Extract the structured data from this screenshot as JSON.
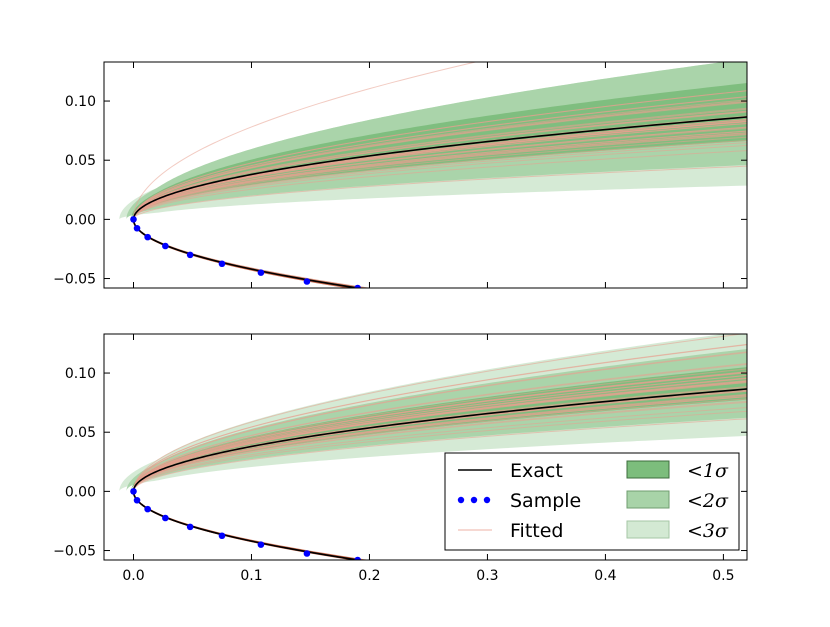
{
  "colors": {
    "exact": "#000000",
    "sample": "#0000ff",
    "fitted": "#e8a090",
    "fitted_dark": "#c0502e",
    "sigma1": "#7cbd7c",
    "sigma2": "#a8d3a8",
    "sigma3": "#d3e9d3"
  },
  "legend": {
    "exact": "Exact",
    "sample": "Sample",
    "fitted": "Fitted",
    "sigma1": "<1σ",
    "sigma2": "<2σ",
    "sigma3": "<3σ"
  },
  "chart_data": [
    {
      "type": "line",
      "panel": "top",
      "title": "",
      "xlabel": "",
      "ylabel": "",
      "xlim": [
        -0.025,
        0.52
      ],
      "ylim": [
        -0.058,
        0.133
      ],
      "yticks": [
        -0.05,
        0.0,
        0.05,
        0.1
      ],
      "ytick_labels": [
        "−0.05",
        "0.00",
        "0.05",
        "0.10"
      ],
      "xticks": [],
      "xtick_labels": [],
      "exact_curve": "upper branch y = 0.12·x^0.5, lower branch y = −0.133·x^0.5",
      "sample_points": {
        "x": [
          0.0,
          0.003,
          0.012,
          0.027,
          0.048,
          0.075,
          0.108,
          0.147,
          0.19
        ],
        "y": [
          0.0,
          -0.0075,
          -0.015,
          -0.0225,
          -0.03,
          -0.0375,
          -0.045,
          -0.0525,
          -0.058
        ]
      },
      "bands_at_x_0_5": {
        "sigma1": [
          0.065,
          0.113
        ],
        "sigma2": [
          0.045,
          0.133
        ],
        "sigma3": [
          0.028,
          0.133
        ]
      },
      "fitted_samples": 40,
      "series": [
        {
          "name": "Exact"
        },
        {
          "name": "Sample"
        },
        {
          "name": "Fitted"
        },
        {
          "name": "<1σ"
        },
        {
          "name": "<2σ"
        },
        {
          "name": "<3σ"
        }
      ]
    },
    {
      "type": "line",
      "panel": "bottom",
      "title": "",
      "xlabel": "",
      "ylabel": "",
      "xlim": [
        -0.025,
        0.52
      ],
      "ylim": [
        -0.058,
        0.133
      ],
      "yticks": [
        -0.05,
        0.0,
        0.05,
        0.1
      ],
      "ytick_labels": [
        "−0.05",
        "0.00",
        "0.05",
        "0.10"
      ],
      "xticks": [
        0.0,
        0.1,
        0.2,
        0.3,
        0.4,
        0.5
      ],
      "xtick_labels": [
        "0.0",
        "0.1",
        "0.2",
        "0.3",
        "0.4",
        "0.5"
      ],
      "exact_curve": "upper branch y = 0.12·x^0.5, lower branch y = −0.133·x^0.5",
      "sample_points": {
        "x": [
          0.0,
          0.003,
          0.012,
          0.027,
          0.048,
          0.075,
          0.108,
          0.147,
          0.19
        ],
        "y": [
          0.0,
          -0.0075,
          -0.015,
          -0.0225,
          -0.03,
          -0.0375,
          -0.045,
          -0.0525,
          -0.058
        ]
      },
      "bands_at_x_0_5": {
        "sigma1": [
          0.076,
          0.103
        ],
        "sigma2": [
          0.061,
          0.118
        ],
        "sigma3": [
          0.046,
          0.133
        ]
      },
      "fitted_samples": 40,
      "legend_position": "lower-right",
      "series": [
        {
          "name": "Exact"
        },
        {
          "name": "Sample"
        },
        {
          "name": "Fitted"
        },
        {
          "name": "<1σ"
        },
        {
          "name": "<2σ"
        },
        {
          "name": "<3σ"
        }
      ]
    }
  ]
}
